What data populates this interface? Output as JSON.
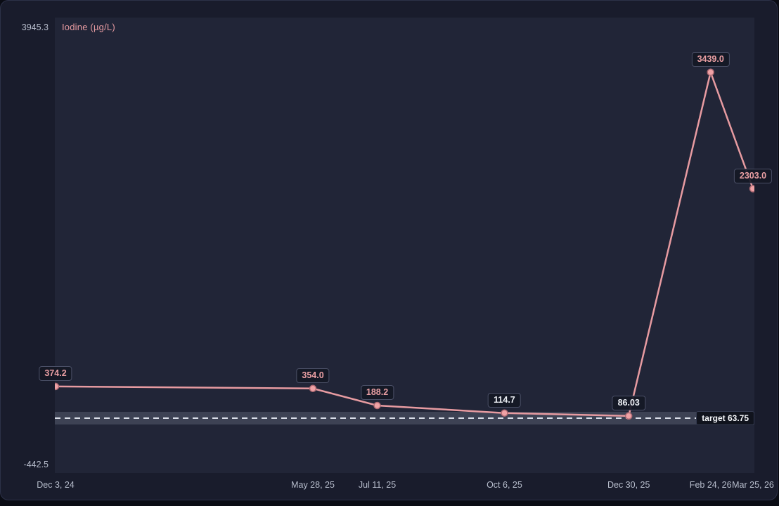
{
  "chart_data": {
    "type": "line",
    "title": "Iodine (µg/L)",
    "unit": "µg/L",
    "grid": false,
    "legend_position": "none",
    "y_axis": {
      "min": -442.5,
      "max": 3945.3,
      "min_label": "-442.5",
      "max_label": "3945.3"
    },
    "x_tick_labels": [
      "Dec 3, 24",
      "May 28, 25",
      "Jul 11, 25",
      "Oct 6, 25",
      "Dec 30, 25",
      "Feb 24, 26",
      "Mar 25, 26"
    ],
    "points": [
      {
        "date": "2024-12-03",
        "x_label": "Dec 3, 24",
        "value": 374.2,
        "value_label": "374.2"
      },
      {
        "date": "2025-05-28",
        "x_label": "May 28, 25",
        "value": 354.0,
        "value_label": "354.0"
      },
      {
        "date": "2025-07-11",
        "x_label": "Jul 11, 25",
        "value": 188.2,
        "value_label": "188.2"
      },
      {
        "date": "2025-10-06",
        "x_label": "Oct 6, 25",
        "value": 114.7,
        "value_label": "114.7"
      },
      {
        "date": "2025-12-30",
        "x_label": "Dec 30, 25",
        "value": 86.03,
        "value_label": "86.03"
      },
      {
        "date": "2026-02-24",
        "x_label": "Feb 24, 26",
        "value": 3439.0,
        "value_label": "3439.0"
      },
      {
        "date": "2026-03-25",
        "x_label": "Mar 25, 26",
        "value": 2303.0,
        "value_label": "2303.0"
      }
    ],
    "target": {
      "value": 63.75,
      "label": "target 63.75",
      "band_min": 0,
      "band_max": 127.5
    },
    "colors": {
      "card_bg": "#191c2c",
      "panel_bg": "#212537",
      "line": "#e79ba1",
      "point_fill": "#efa2a6",
      "point_stroke": "#b06b74",
      "label_in_range_text": "#eef1f6",
      "label_out_range_text": "#ea9fa3",
      "band": "#3d4254",
      "target_line": "#d9dde8",
      "target_label_text": "#f5f7fa",
      "axis_text": "#b7bdcc",
      "title_text": "#e79ba1"
    }
  }
}
